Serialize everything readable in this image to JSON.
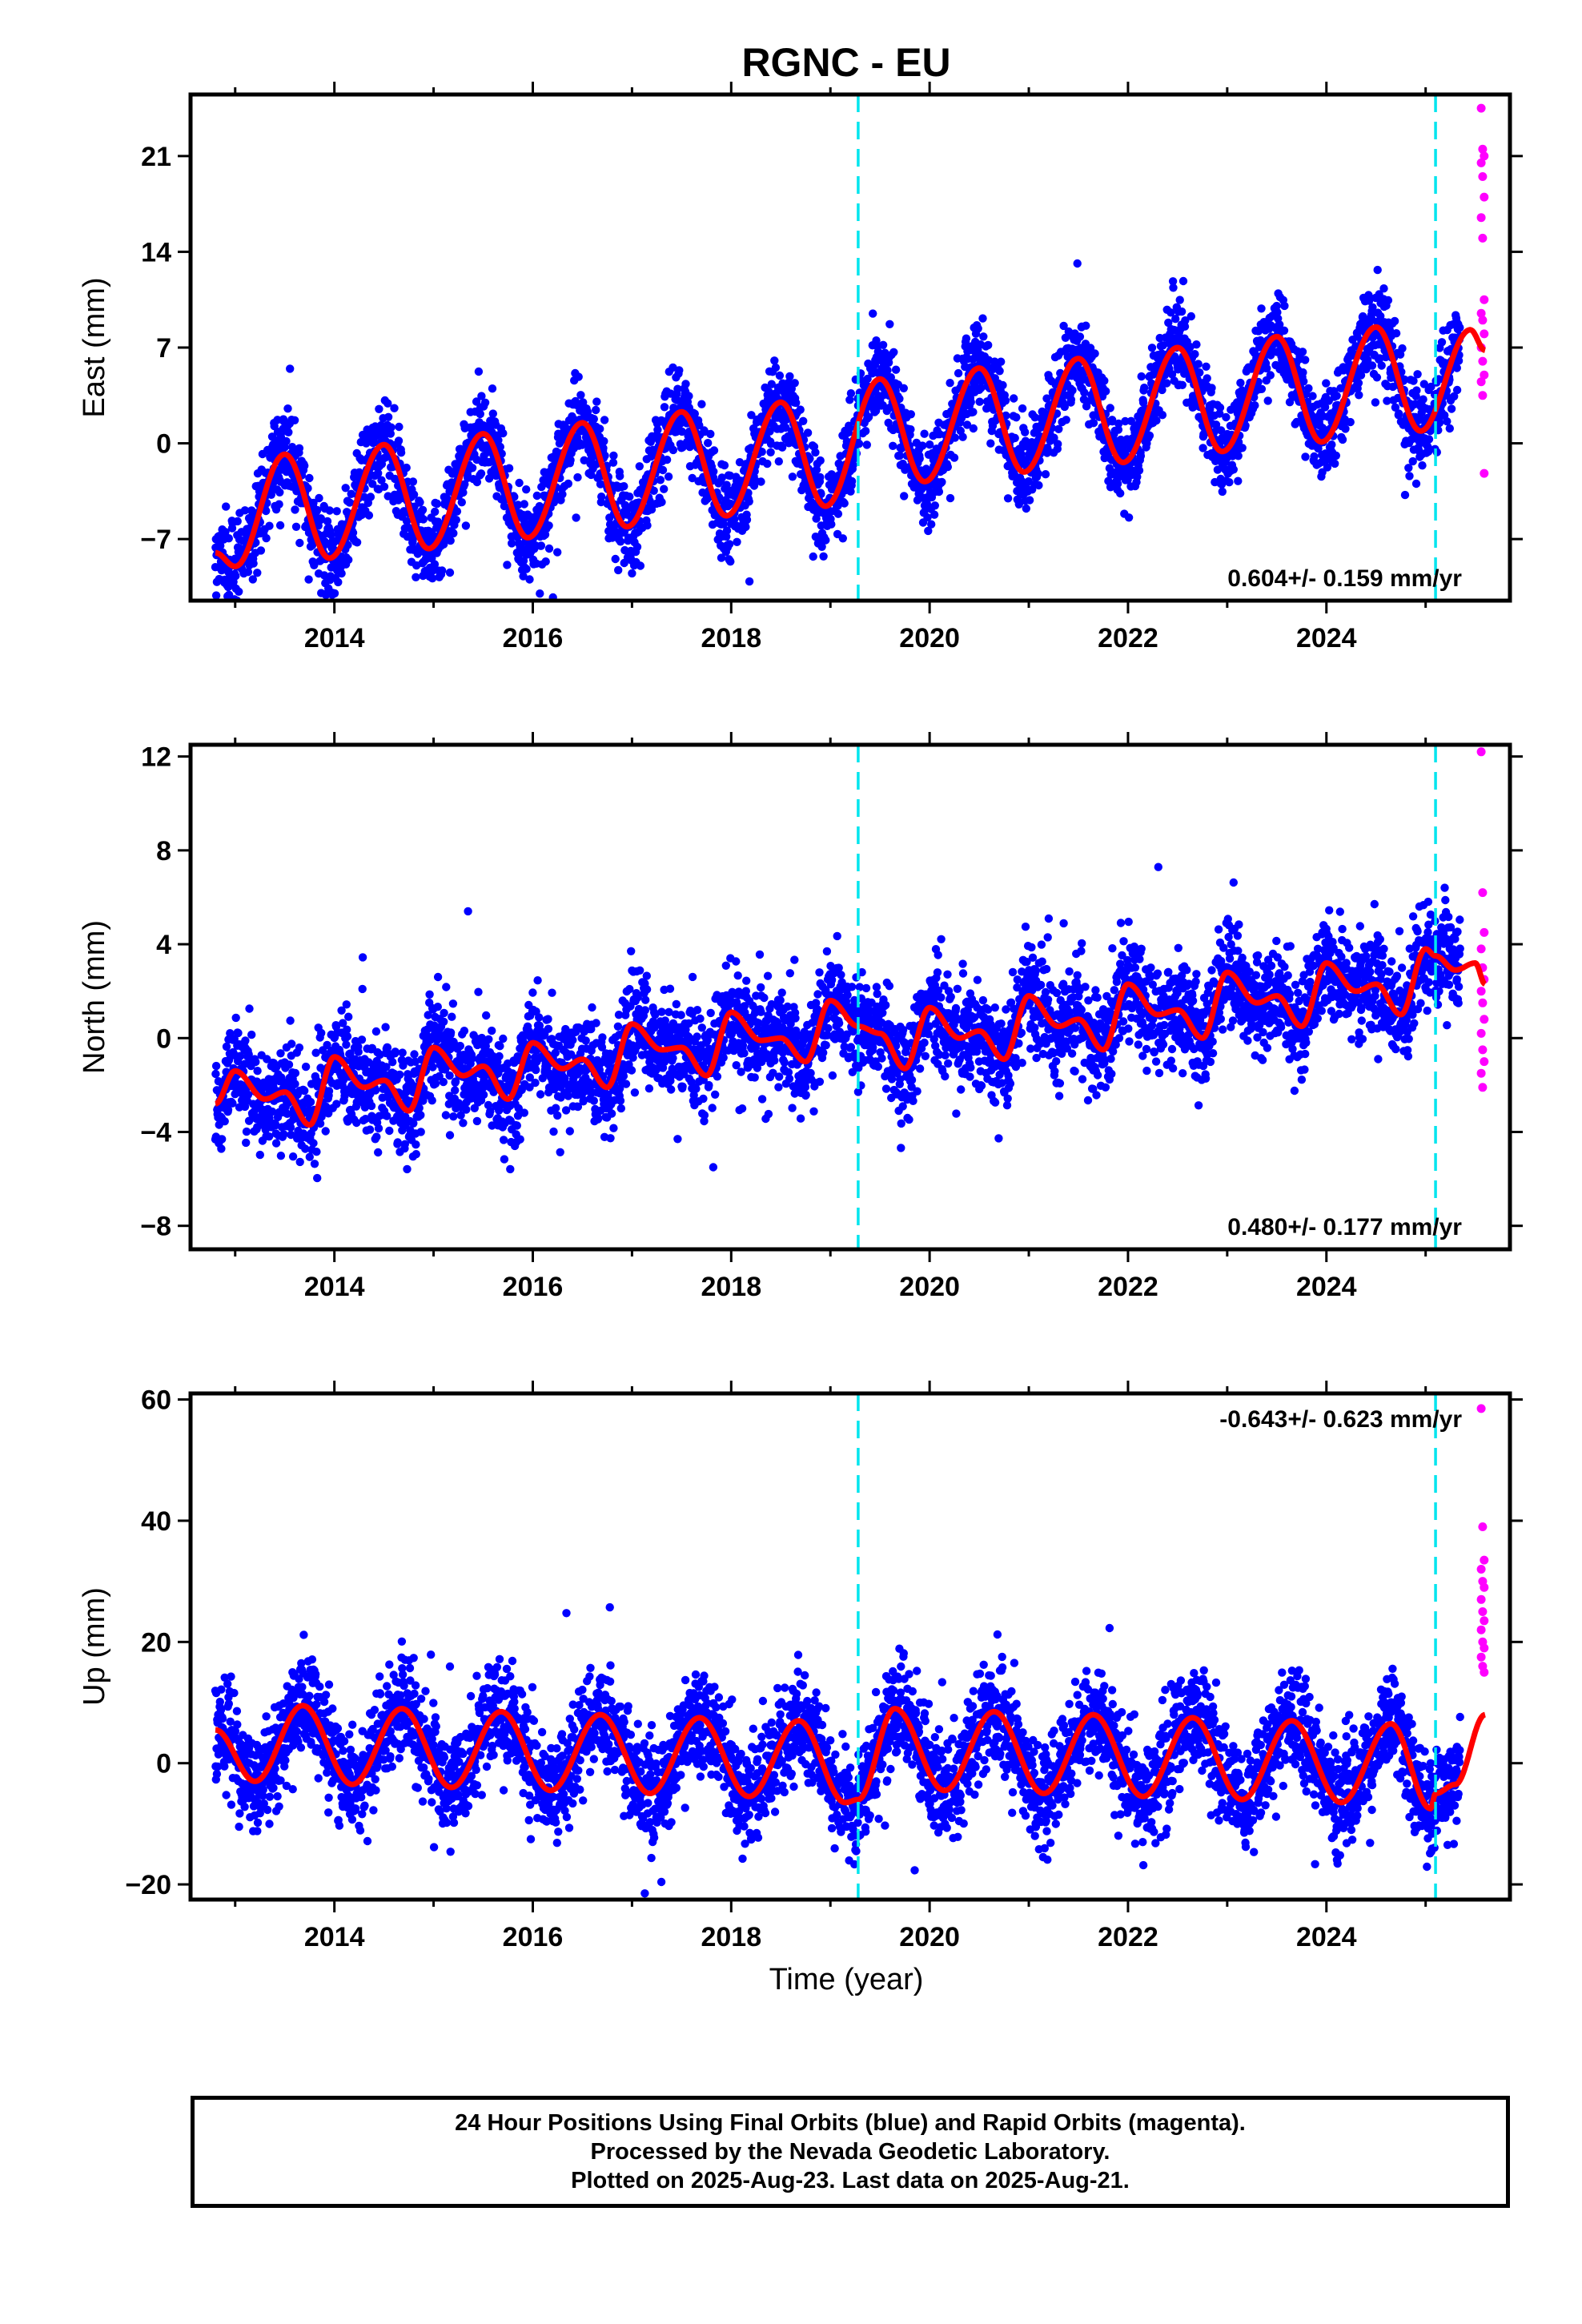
{
  "title": "RGNC - EU",
  "xlabel": "Time (year)",
  "footer": {
    "line1": "24 Hour Positions Using Final Orbits (blue) and Rapid Orbits (magenta).",
    "line2": "Processed by the Nevada Geodetic Laboratory.",
    "line3": "Plotted on 2025-Aug-23. Last data on 2025-Aug-21."
  },
  "colors": {
    "final": "#0000ff",
    "rapid": "#ff00ff",
    "model": "#ff0000",
    "steps": "#00e5ee"
  },
  "chart_data": [
    {
      "type": "scatter",
      "ylabel": "East (mm)",
      "xlim": [
        2012.55,
        2025.85
      ],
      "ylim": [
        -11.5,
        25.5
      ],
      "yticks": [
        -7,
        0,
        7,
        14,
        21
      ],
      "ytick_labels": [
        "−7",
        "0",
        "7",
        "14",
        "21"
      ],
      "xticks": [
        2014,
        2016,
        2018,
        2020,
        2022,
        2024
      ],
      "xtick_labels": [
        "2014",
        "2016",
        "2018",
        "2020",
        "2022",
        "2024"
      ],
      "rate_label": "0.604+/- 0.159 mm/yr",
      "rate_position": "bottom-right",
      "steps": [
        2019.28,
        2025.1
      ],
      "model": {
        "start": 2012.8,
        "end": 2025.6,
        "knots": [
          [
            2012.8,
            -8
          ],
          [
            2013.0,
            -9
          ],
          [
            2013.5,
            -0.8
          ],
          [
            2013.95,
            -8.4
          ],
          [
            2014.5,
            -0.1
          ],
          [
            2014.95,
            -7.7
          ],
          [
            2015.5,
            0.7
          ],
          [
            2015.95,
            -6.9
          ],
          [
            2016.5,
            1.5
          ],
          [
            2016.95,
            -6.1
          ],
          [
            2017.5,
            2.3
          ],
          [
            2017.95,
            -5.3
          ],
          [
            2018.5,
            3.0
          ],
          [
            2018.95,
            -4.6
          ],
          [
            2019.5,
            4.7
          ],
          [
            2019.95,
            -2.8
          ],
          [
            2020.5,
            5.5
          ],
          [
            2020.95,
            -2.1
          ],
          [
            2021.5,
            6.2
          ],
          [
            2021.95,
            -1.4
          ],
          [
            2022.5,
            7.0
          ],
          [
            2022.95,
            -0.6
          ],
          [
            2023.5,
            7.8
          ],
          [
            2023.95,
            0.1
          ],
          [
            2024.5,
            8.5
          ],
          [
            2024.95,
            0.9
          ],
          [
            2025.45,
            8.3
          ],
          [
            2025.6,
            6.8
          ]
        ]
      },
      "final_series": {
        "name": "Final Orbits",
        "start": 2012.8,
        "end": 2025.35,
        "noise": 1.6
      },
      "rapid_series": {
        "name": "Rapid Orbits",
        "x_range": [
          2025.35,
          2025.62
        ],
        "values": [
          24.5,
          21.5,
          21.0,
          20.5,
          19.5,
          18,
          16.5,
          15,
          10.5,
          9.5,
          9,
          8,
          7,
          6,
          5,
          4.5,
          3.5,
          -2.2
        ]
      }
    },
    {
      "type": "scatter",
      "ylabel": "North (mm)",
      "xlim": [
        2012.55,
        2025.85
      ],
      "ylim": [
        -9,
        12.5
      ],
      "yticks": [
        -8,
        -4,
        0,
        4,
        8,
        12
      ],
      "ytick_labels": [
        "−8",
        "−4",
        "0",
        "4",
        "8",
        "12"
      ],
      "xticks": [
        2014,
        2016,
        2018,
        2020,
        2022,
        2024
      ],
      "xtick_labels": [
        "2014",
        "2016",
        "2018",
        "2020",
        "2022",
        "2024"
      ],
      "rate_label": "0.480+/- 0.177 mm/yr",
      "rate_position": "bottom-right",
      "steps": [
        2019.28,
        2025.1
      ],
      "model": {
        "start": 2012.8,
        "end": 2025.6,
        "knots": [
          [
            2012.8,
            -2.8
          ],
          [
            2013.0,
            -1.4
          ],
          [
            2013.3,
            -2.6
          ],
          [
            2013.5,
            -2.3
          ],
          [
            2013.75,
            -3.7
          ],
          [
            2014.0,
            -0.8
          ],
          [
            2014.3,
            -2.1
          ],
          [
            2014.5,
            -1.8
          ],
          [
            2014.75,
            -3.1
          ],
          [
            2015.0,
            -0.4
          ],
          [
            2015.3,
            -1.6
          ],
          [
            2015.5,
            -1.2
          ],
          [
            2015.75,
            -2.6
          ],
          [
            2016.0,
            -0.2
          ],
          [
            2016.3,
            -1.3
          ],
          [
            2016.5,
            -0.9
          ],
          [
            2016.75,
            -2.1
          ],
          [
            2017.0,
            0.6
          ],
          [
            2017.3,
            -0.5
          ],
          [
            2017.5,
            -0.4
          ],
          [
            2017.75,
            -1.6
          ],
          [
            2018.0,
            1.1
          ],
          [
            2018.3,
            -0.1
          ],
          [
            2018.5,
            0.0
          ],
          [
            2018.75,
            -1.0
          ],
          [
            2019.0,
            1.6
          ],
          [
            2019.28,
            0.5
          ],
          [
            2019.5,
            0.2
          ],
          [
            2019.75,
            -1.3
          ],
          [
            2020.0,
            1.3
          ],
          [
            2020.3,
            0.0
          ],
          [
            2020.5,
            0.3
          ],
          [
            2020.75,
            -0.9
          ],
          [
            2021.0,
            1.8
          ],
          [
            2021.3,
            0.5
          ],
          [
            2021.5,
            0.8
          ],
          [
            2021.75,
            -0.5
          ],
          [
            2022.0,
            2.3
          ],
          [
            2022.3,
            1.0
          ],
          [
            2022.5,
            1.2
          ],
          [
            2022.75,
            0.0
          ],
          [
            2023.0,
            2.8
          ],
          [
            2023.3,
            1.5
          ],
          [
            2023.5,
            1.8
          ],
          [
            2023.75,
            0.5
          ],
          [
            2024.0,
            3.2
          ],
          [
            2024.3,
            2.0
          ],
          [
            2024.5,
            2.3
          ],
          [
            2024.75,
            1.0
          ],
          [
            2025.0,
            3.8
          ],
          [
            2025.1,
            3.5
          ],
          [
            2025.3,
            2.9
          ],
          [
            2025.5,
            3.2
          ],
          [
            2025.6,
            2.3
          ]
        ]
      },
      "final_series": {
        "name": "Final Orbits",
        "start": 2012.8,
        "end": 2025.35,
        "noise": 1.1
      },
      "rapid_series": {
        "name": "Rapid Orbits",
        "x_range": [
          2025.35,
          2025.62
        ],
        "values": [
          12.2,
          6.2,
          4.5,
          3.8,
          3.0,
          2.5,
          2.0,
          1.5,
          0.8,
          0.2,
          -0.5,
          -1.0,
          -1.5,
          -2.1
        ]
      }
    },
    {
      "type": "scatter",
      "ylabel": "Up (mm)",
      "xlim": [
        2012.55,
        2025.85
      ],
      "ylim": [
        -22.5,
        61
      ],
      "yticks": [
        -20,
        0,
        20,
        40,
        60
      ],
      "ytick_labels": [
        "−20",
        "0",
        "20",
        "40",
        "60"
      ],
      "xticks": [
        2014,
        2016,
        2018,
        2020,
        2022,
        2024
      ],
      "xtick_labels": [
        "2014",
        "2016",
        "2018",
        "2020",
        "2022",
        "2024"
      ],
      "rate_label": "-0.643+/- 0.623 mm/yr",
      "rate_position": "top-right",
      "steps": [
        2019.28,
        2025.1
      ],
      "model": {
        "start": 2012.8,
        "end": 2025.6,
        "knots": [
          [
            2012.8,
            5.5
          ],
          [
            2013.2,
            -3.0
          ],
          [
            2013.68,
            9.5
          ],
          [
            2014.18,
            -3.5
          ],
          [
            2014.68,
            9.0
          ],
          [
            2015.18,
            -4.0
          ],
          [
            2015.68,
            8.5
          ],
          [
            2016.18,
            -4.5
          ],
          [
            2016.68,
            8.0
          ],
          [
            2017.18,
            -5.0
          ],
          [
            2017.68,
            7.5
          ],
          [
            2018.18,
            -5.5
          ],
          [
            2018.68,
            7.0
          ],
          [
            2019.15,
            -6.5
          ],
          [
            2019.28,
            -6.0
          ],
          [
            2019.65,
            9.0
          ],
          [
            2020.15,
            -4.5
          ],
          [
            2020.65,
            8.5
          ],
          [
            2021.15,
            -5.0
          ],
          [
            2021.65,
            8.0
          ],
          [
            2022.15,
            -5.5
          ],
          [
            2022.65,
            7.5
          ],
          [
            2023.15,
            -6.0
          ],
          [
            2023.65,
            7.0
          ],
          [
            2024.15,
            -6.5
          ],
          [
            2024.65,
            6.5
          ],
          [
            2025.05,
            -7.5
          ],
          [
            2025.1,
            -5.0
          ],
          [
            2025.3,
            -3.5
          ],
          [
            2025.6,
            8.0
          ]
        ]
      },
      "final_series": {
        "name": "Final Orbits",
        "start": 2012.8,
        "end": 2025.35,
        "noise": 4.2
      },
      "rapid_series": {
        "name": "Rapid Orbits",
        "x_range": [
          2025.35,
          2025.62
        ],
        "values": [
          58.5,
          39,
          33.5,
          32,
          30,
          29,
          27,
          25,
          23.5,
          22,
          20,
          19,
          17.5,
          16,
          15
        ]
      }
    }
  ]
}
